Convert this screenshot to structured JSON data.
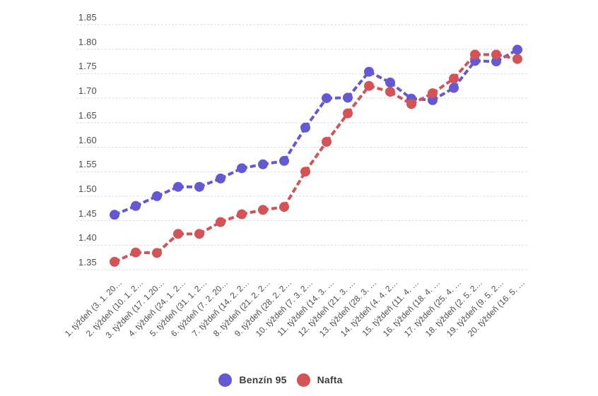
{
  "chart_data": {
    "type": "line",
    "title": "",
    "categories": [
      "1. týždeň (3. 1. 20…",
      "2. týždeň (10. 1. 2…",
      "3. týždeň (17. 1.20…",
      "4. týždeň (24. 1. 2…",
      "5. týždeň (31. 1. 2…",
      "6. týždeň (7. 2. 20…",
      "7. týždeň (14. 2. 2…",
      "8. týždeň (21. 2. 2…",
      "9. týždeň (28. 2. 2…",
      "10. týždeň (7. 3. 2…",
      "11. týždeň (14. 3. …",
      "12. týždeň (21. 3. …",
      "13. týždeň (28. 3. …",
      "14. týždeň (4. 4. 2…",
      "15. týždeň (11. 4. …",
      "16. týždeň (18. 4. …",
      "17. týždeň (25. 4. …",
      "18. týždeň (2. 5. 2…",
      "19. týždeň (9. 5. 2…",
      "20. týždeň (16. 5. …"
    ],
    "series": [
      {
        "name": "Benzín 95",
        "color": "#6459d2",
        "values": [
          1.462,
          1.48,
          1.5,
          1.519,
          1.519,
          1.536,
          1.557,
          1.565,
          1.572,
          1.64,
          1.7,
          1.701,
          1.754,
          1.732,
          1.699,
          1.696,
          1.721,
          1.776,
          1.775,
          1.799
        ]
      },
      {
        "name": "Nafta",
        "color": "#d45356",
        "values": [
          1.366,
          1.385,
          1.384,
          1.423,
          1.423,
          1.447,
          1.463,
          1.472,
          1.478,
          1.55,
          1.611,
          1.669,
          1.725,
          1.713,
          1.688,
          1.71,
          1.74,
          1.789,
          1.789,
          1.78
        ]
      }
    ],
    "ylim": [
      1.35,
      1.85
    ],
    "y_ticks": [
      1.85,
      1.8,
      1.75,
      1.7,
      1.65,
      1.6,
      1.55,
      1.5,
      1.45,
      1.4,
      1.35
    ],
    "y_tick_decimals": 2,
    "grid": true,
    "line_style": "dashed",
    "point_markers": true,
    "legend_position": "bottom",
    "colors": {
      "grid": "#dedede",
      "axis_label": "#4e4e4e",
      "legend_text": "#3d3d3d",
      "background": "#ffffff"
    }
  }
}
